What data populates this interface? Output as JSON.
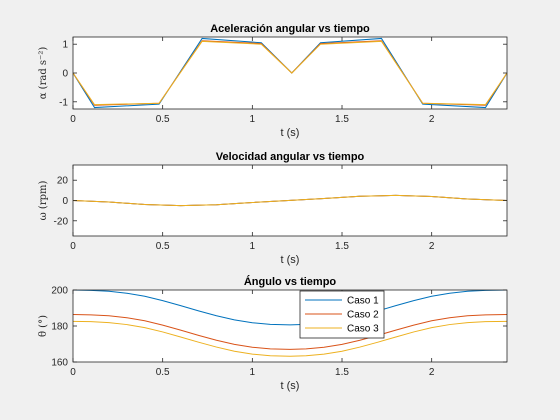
{
  "chart_data": [
    {
      "type": "line",
      "title": "Aceleración angular vs tiempo",
      "xlabel": "t (s)",
      "ylabel": "α (rad s⁻²)",
      "xlim": [
        0,
        2.42
      ],
      "ylim": [
        -1.25,
        1.25
      ],
      "xticks": [
        0,
        0.5,
        1,
        1.5,
        2
      ],
      "xticklabels": [
        "0",
        "0.5",
        "1",
        "1.5",
        "2"
      ],
      "yticks": [
        -1,
        0,
        1
      ],
      "yticklabels": [
        "-1",
        "0",
        "1"
      ],
      "series": [
        {
          "name": "Caso 1",
          "color": "#0072BD",
          "x": [
            0,
            0.12,
            0.48,
            0.72,
            1.05,
            1.22,
            1.38,
            1.72,
            1.95,
            2.3,
            2.42
          ],
          "y": [
            0,
            -1.2,
            -1.08,
            1.2,
            1.05,
            0,
            1.05,
            1.2,
            -1.08,
            -1.2,
            0
          ]
        },
        {
          "name": "Caso 2",
          "color": "#D95319",
          "x": [
            0,
            0.12,
            0.48,
            0.72,
            1.05,
            1.22,
            1.38,
            1.72,
            1.95,
            2.3,
            2.42
          ],
          "y": [
            0,
            -1.12,
            -1.05,
            1.12,
            1.02,
            0,
            1.02,
            1.12,
            -1.05,
            -1.12,
            0
          ]
        },
        {
          "name": "Caso 3",
          "color": "#EDB120",
          "x": [
            0,
            0.12,
            0.48,
            0.72,
            1.05,
            1.22,
            1.38,
            1.72,
            1.95,
            2.3,
            2.42
          ],
          "y": [
            0,
            -1.1,
            -1.05,
            1.1,
            1.0,
            0,
            1.0,
            1.1,
            -1.05,
            -1.1,
            0
          ]
        }
      ]
    },
    {
      "type": "line",
      "title": "Velocidad angular vs tiempo",
      "xlabel": "t (s)",
      "ylabel": "ω (rpm)",
      "xlim": [
        0,
        2.42
      ],
      "ylim": [
        -35,
        35
      ],
      "xticks": [
        0,
        0.5,
        1,
        1.5,
        2
      ],
      "xticklabels": [
        "0",
        "0.5",
        "1",
        "1.5",
        "2"
      ],
      "yticks": [
        -20,
        0,
        20
      ],
      "yticklabels": [
        "-20",
        "0",
        "20"
      ],
      "series": [
        {
          "name": "Caso 1",
          "color": "#0072BD",
          "x": [
            0,
            0.2,
            0.4,
            0.6,
            0.8,
            1.0,
            1.2,
            1.4,
            1.6,
            1.8,
            2.0,
            2.2,
            2.42
          ],
          "y": [
            0,
            -1.5,
            -4,
            -5,
            -4.2,
            -2,
            0,
            2,
            4.2,
            5,
            4,
            1.5,
            0
          ]
        },
        {
          "name": "Caso 2",
          "color": "#D95319",
          "x": [
            0,
            0.2,
            0.4,
            0.6,
            0.8,
            1.0,
            1.2,
            1.4,
            1.6,
            1.8,
            2.0,
            2.2,
            2.42
          ],
          "y": [
            0,
            -1.5,
            -4,
            -5,
            -4.2,
            -2,
            0,
            2,
            4.2,
            5,
            4,
            1.5,
            0
          ]
        },
        {
          "name": "Caso 3",
          "color": "#EDB120",
          "x": [
            0,
            0.2,
            0.4,
            0.6,
            0.8,
            1.0,
            1.2,
            1.4,
            1.6,
            1.8,
            2.0,
            2.2,
            2.42
          ],
          "y": [
            0,
            -1.5,
            -4,
            -5,
            -4.2,
            -2,
            0,
            2,
            4.2,
            5,
            4,
            1.5,
            0
          ]
        }
      ]
    },
    {
      "type": "line",
      "title": "Ángulo vs tiempo",
      "xlabel": "t (s)",
      "ylabel": "θ (°)",
      "xlim": [
        0,
        2.42
      ],
      "ylim": [
        160,
        200
      ],
      "xticks": [
        0,
        0.5,
        1,
        1.5,
        2
      ],
      "xticklabels": [
        "0",
        "0.5",
        "1",
        "1.5",
        "2"
      ],
      "yticks": [
        160,
        180,
        200
      ],
      "yticklabels": [
        "160",
        "180",
        "200"
      ],
      "legend": {
        "position": "top-right",
        "entries": [
          "Caso 1",
          "Caso 2",
          "Caso 3"
        ]
      },
      "series": [
        {
          "name": "Caso 1",
          "color": "#0072BD",
          "x": [
            0,
            0.1,
            0.2,
            0.3,
            0.4,
            0.5,
            0.6,
            0.7,
            0.8,
            0.9,
            1.0,
            1.1,
            1.21,
            1.3,
            1.4,
            1.5,
            1.6,
            1.7,
            1.8,
            1.9,
            2.0,
            2.1,
            2.2,
            2.3,
            2.42
          ],
          "y": [
            200,
            199.8,
            199.3,
            198.2,
            196.5,
            194.1,
            191.3,
            188.4,
            185.7,
            183.4,
            181.8,
            180.9,
            180.6,
            180.9,
            181.8,
            183.4,
            185.7,
            188.4,
            191.3,
            194.1,
            196.5,
            198.2,
            199.3,
            199.8,
            200
          ]
        },
        {
          "name": "Caso 2",
          "color": "#D95319",
          "x": [
            0,
            0.1,
            0.2,
            0.3,
            0.4,
            0.5,
            0.6,
            0.7,
            0.8,
            0.9,
            1.0,
            1.1,
            1.21,
            1.3,
            1.4,
            1.5,
            1.6,
            1.7,
            1.8,
            1.9,
            2.0,
            2.1,
            2.2,
            2.3,
            2.42
          ],
          "y": [
            186.4,
            186.2,
            185.7,
            184.6,
            182.9,
            180.5,
            177.7,
            174.8,
            172.1,
            169.8,
            168.2,
            167.3,
            167.0,
            167.3,
            168.2,
            169.8,
            172.1,
            174.8,
            177.7,
            180.5,
            182.9,
            184.6,
            185.7,
            186.2,
            186.4
          ]
        },
        {
          "name": "Caso 3",
          "color": "#EDB120",
          "x": [
            0,
            0.1,
            0.2,
            0.3,
            0.4,
            0.5,
            0.6,
            0.7,
            0.8,
            0.9,
            1.0,
            1.1,
            1.21,
            1.3,
            1.4,
            1.5,
            1.6,
            1.7,
            1.8,
            1.9,
            2.0,
            2.1,
            2.2,
            2.3,
            2.42
          ],
          "y": [
            182.6,
            182.4,
            181.9,
            180.8,
            179.1,
            176.7,
            173.9,
            171.0,
            168.3,
            166.0,
            164.4,
            163.5,
            163.2,
            163.5,
            164.4,
            166.0,
            168.3,
            171.0,
            173.9,
            176.7,
            179.1,
            180.8,
            181.9,
            182.4,
            182.6
          ]
        }
      ]
    }
  ]
}
